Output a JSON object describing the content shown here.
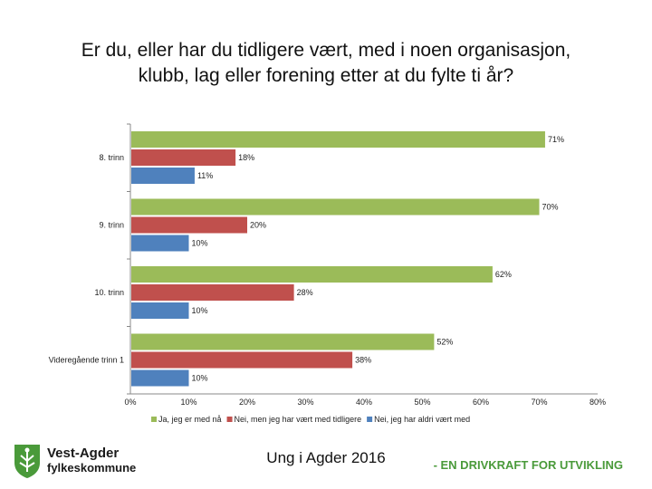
{
  "title_lines": [
    "Er du, eller har du tidligere vært, med i noen organisasjon,",
    "klubb, lag eller forening etter at du fylte ti år?"
  ],
  "chart_data": {
    "type": "bar",
    "orientation": "horizontal",
    "categories": [
      "8. trinn",
      "9. trinn",
      "10. trinn",
      "Videregående trinn 1"
    ],
    "series": [
      {
        "name": "Ja, jeg er med nå",
        "color": "#9bbb59",
        "values": [
          71,
          70,
          62,
          52
        ]
      },
      {
        "name": "Nei, men jeg har vært med tidligere",
        "color": "#c0504d",
        "values": [
          18,
          20,
          28,
          38
        ]
      },
      {
        "name": "Nei, jeg har aldri vært med",
        "color": "#4f81bd",
        "values": [
          11,
          10,
          10,
          10
        ]
      }
    ],
    "xlim": [
      0,
      80
    ],
    "xticks": [
      "0%",
      "10%",
      "20%",
      "30%",
      "40%",
      "50%",
      "60%",
      "70%",
      "80%"
    ],
    "value_suffix": "%",
    "legend_position": "bottom"
  },
  "footer": {
    "center_text": "Ung i Agder 2016",
    "logo_name": "Vest-Agder",
    "logo_sub": "fylkeskommune",
    "tagline": "- EN DRIVKRAFT FOR UTVIKLING",
    "logo_color": "#4a9a3a"
  }
}
